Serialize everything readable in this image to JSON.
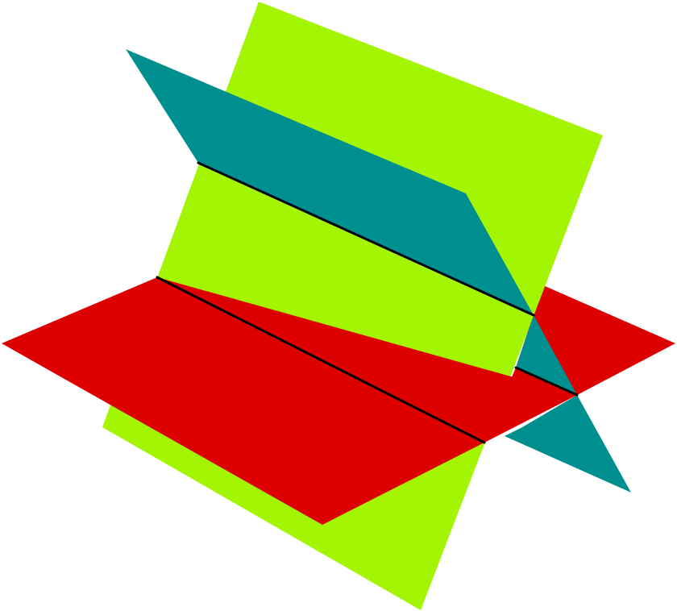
{
  "diagram": {
    "description_type": "three-planes-intersection",
    "planes": [
      {
        "name": "vertical-plane",
        "color": "#a4f504"
      },
      {
        "name": "slanted-plane",
        "color": "#008f8f"
      },
      {
        "name": "horizontal-plane",
        "color": "#dc0000"
      }
    ],
    "line_color": "#000000"
  }
}
